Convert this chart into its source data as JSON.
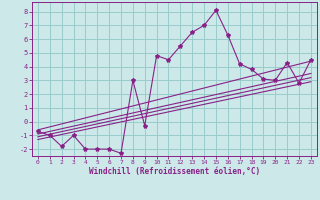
{
  "xlabel": "Windchill (Refroidissement éolien,°C)",
  "bg_color": "#cce8e8",
  "grid_color": "#99cccc",
  "line_color": "#882288",
  "xlim": [
    -0.5,
    23.5
  ],
  "ylim": [
    -2.5,
    8.7
  ],
  "xticks": [
    0,
    1,
    2,
    3,
    4,
    5,
    6,
    7,
    8,
    9,
    10,
    11,
    12,
    13,
    14,
    15,
    16,
    17,
    18,
    19,
    20,
    21,
    22,
    23
  ],
  "yticks": [
    -2,
    -1,
    0,
    1,
    2,
    3,
    4,
    5,
    6,
    7,
    8
  ],
  "data_x": [
    0,
    1,
    2,
    3,
    4,
    5,
    6,
    7,
    8,
    9,
    10,
    11,
    12,
    13,
    14,
    15,
    16,
    17,
    18,
    19,
    20,
    21,
    22,
    23
  ],
  "data_y": [
    -0.7,
    -1.0,
    -1.8,
    -1.0,
    -2.0,
    -2.0,
    -2.0,
    -2.3,
    3.0,
    -0.3,
    4.8,
    4.5,
    5.5,
    6.5,
    7.0,
    8.1,
    6.3,
    4.2,
    3.8,
    3.1,
    3.0,
    4.3,
    2.8,
    4.5
  ],
  "reg_lines": [
    {
      "x": [
        0,
        23
      ],
      "y": [
        -1.3,
        2.9
      ]
    },
    {
      "x": [
        0,
        23
      ],
      "y": [
        -1.1,
        3.2
      ]
    },
    {
      "x": [
        0,
        23
      ],
      "y": [
        -0.9,
        3.5
      ]
    },
    {
      "x": [
        0,
        23
      ],
      "y": [
        -0.6,
        4.4
      ]
    }
  ]
}
